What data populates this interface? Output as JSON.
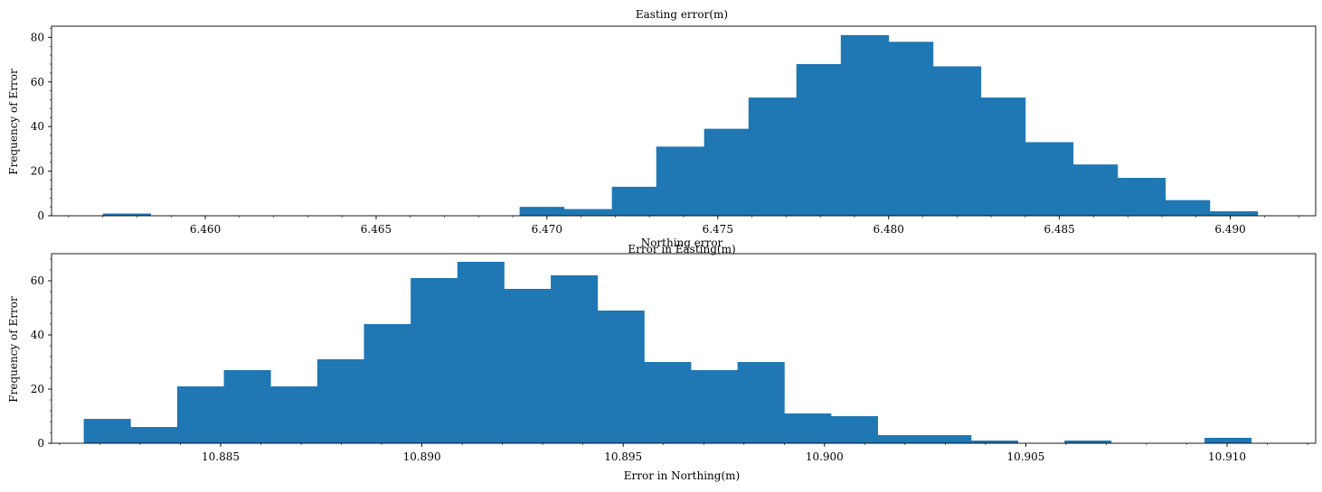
{
  "chart_data": [
    {
      "type": "bar",
      "title": "Easting error(m)",
      "xlabel": "Error in Easting(m)",
      "ylabel": "Frequency of Error",
      "xlim": [
        6.4555,
        6.4925
      ],
      "ylim": [
        0,
        85
      ],
      "xticks": [
        "6.460",
        "6.465",
        "6.470",
        "6.475",
        "6.480",
        "6.485",
        "6.490"
      ],
      "xtick_values": [
        6.46,
        6.465,
        6.47,
        6.475,
        6.48,
        6.485,
        6.49
      ],
      "yticks": [
        "0",
        "20",
        "40",
        "60",
        "80"
      ],
      "ytick_values": [
        0,
        20,
        40,
        60,
        80
      ],
      "bin_edges": [
        6.457,
        6.4584,
        6.4597,
        6.4611,
        6.4624,
        6.4638,
        6.4651,
        6.4665,
        6.4678,
        6.4692,
        6.4705,
        6.4719,
        6.4732,
        6.4746,
        6.4759,
        6.4773,
        6.4786,
        6.48,
        6.4813,
        6.4827,
        6.484,
        6.4854,
        6.4867,
        6.4881,
        6.4894,
        6.4908
      ],
      "values": [
        1,
        0,
        0,
        0,
        0,
        0,
        0,
        0,
        0,
        4,
        3,
        13,
        31,
        39,
        53,
        68,
        81,
        78,
        67,
        53,
        33,
        23,
        17,
        7,
        2
      ],
      "color": "#1f77b4",
      "grid": false
    },
    {
      "type": "bar",
      "title": "Northing error",
      "xlabel": "Error in Northing(m)",
      "ylabel": "Frequency of Error",
      "xlim": [
        10.8808,
        10.9122
      ],
      "ylim": [
        0,
        70
      ],
      "xticks": [
        "10.885",
        "10.890",
        "10.895",
        "10.900",
        "10.905",
        "10.910"
      ],
      "xtick_values": [
        10.885,
        10.89,
        10.895,
        10.9,
        10.905,
        10.91
      ],
      "yticks": [
        "0",
        "20",
        "40",
        "60"
      ],
      "ytick_values": [
        0,
        20,
        40,
        60
      ],
      "bin_edges": [
        10.8816,
        10.88276,
        10.88392,
        10.88508,
        10.88624,
        10.8874,
        10.88856,
        10.88972,
        10.89088,
        10.89204,
        10.8932,
        10.89436,
        10.89552,
        10.89668,
        10.89784,
        10.899,
        10.90016,
        10.90132,
        10.90248,
        10.90364,
        10.9048,
        10.90596,
        10.90712,
        10.90828,
        10.90944,
        10.9106
      ],
      "values": [
        9,
        6,
        21,
        27,
        21,
        31,
        44,
        61,
        67,
        57,
        62,
        49,
        30,
        27,
        30,
        11,
        10,
        3,
        3,
        1,
        0,
        1,
        0,
        0,
        2
      ],
      "color": "#1f77b4",
      "grid": false
    }
  ]
}
